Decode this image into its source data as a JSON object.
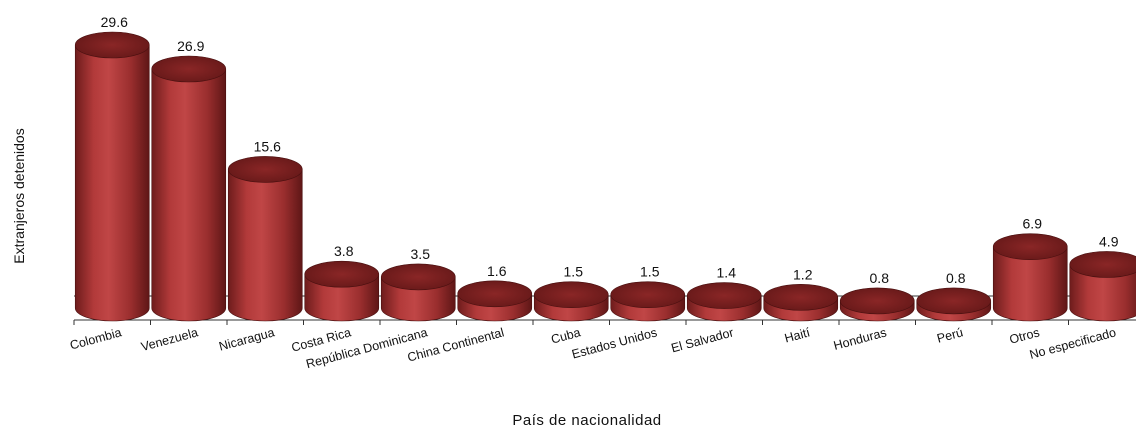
{
  "chart_data": {
    "type": "bar",
    "categories": [
      "Colombia",
      "Venezuela",
      "Nicaragua",
      "Costa Rica",
      "República Dominicana",
      "China Continental",
      "Cuba",
      "Estados Unidos",
      "El Salvador",
      "Haití",
      "Honduras",
      "Perú",
      "Otros",
      "No especificado"
    ],
    "values": [
      29.6,
      26.9,
      15.6,
      3.8,
      3.5,
      1.6,
      1.5,
      1.5,
      1.4,
      1.2,
      0.8,
      0.8,
      6.9,
      4.9
    ],
    "value_labels": [
      "29.6",
      "26.9",
      "15.6",
      "3.8",
      "3.5",
      "1.6",
      "1.5",
      "1.5",
      "1.4",
      "1.2",
      "0.8",
      "0.8",
      "6.9",
      "4.9"
    ],
    "xlabel": "País de nacionalidad",
    "ylabel": "Extranjeros detenidos",
    "ylim": [
      0,
      30
    ],
    "grid": false,
    "bar_color": "#a83232",
    "bar_top_color": "#7e1f1f"
  }
}
